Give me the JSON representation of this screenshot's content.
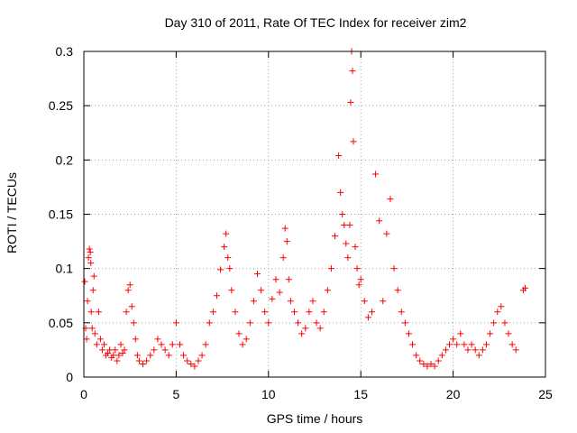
{
  "chart_data": {
    "type": "scatter",
    "title": "Day 310 of 2011, Rate Of TEC Index for receiver zim2",
    "xlabel": "GPS time / hours",
    "ylabel": "ROTI / TECUs",
    "xlim": [
      0,
      25
    ],
    "ylim": [
      0,
      0.3
    ],
    "xticks": [
      0,
      5,
      10,
      15,
      20,
      25
    ],
    "yticks": [
      0,
      0.05,
      0.1,
      0.15,
      0.2,
      0.25,
      0.3
    ],
    "xtick_labels": [
      "0",
      "5",
      "10",
      "15",
      "20",
      "25"
    ],
    "ytick_labels": [
      "0",
      "0.05",
      "0.1",
      "0.15",
      "0.2",
      "0.25",
      "0.3"
    ],
    "grid": true,
    "marker": "+",
    "series_color": "#ff0000",
    "series": [
      {
        "x": [
          0.05,
          0.1,
          0.15,
          0.2,
          0.25,
          0.3,
          0.35,
          0.38,
          0.4,
          0.45,
          0.5,
          0.55,
          0.6,
          0.7,
          0.8,
          0.9,
          1.0,
          1.1,
          1.2,
          1.3,
          1.4,
          1.5,
          1.6,
          1.7,
          1.8,
          1.9,
          2.0,
          2.1,
          2.2,
          2.3,
          2.4,
          2.5,
          2.6,
          2.7,
          2.8,
          2.9,
          3.0,
          3.2,
          3.4,
          3.6,
          3.8,
          4.0,
          4.2,
          4.4,
          4.6,
          4.8,
          5.0,
          5.2,
          5.4,
          5.6,
          5.8,
          6.0,
          6.2,
          6.4,
          6.6,
          6.8,
          7.0,
          7.2,
          7.4,
          7.6,
          7.7,
          7.8,
          7.9,
          8.0,
          8.2,
          8.4,
          8.6,
          8.8,
          9.0,
          9.2,
          9.4,
          9.6,
          9.8,
          10.0,
          10.2,
          10.4,
          10.6,
          10.8,
          10.9,
          11.0,
          11.1,
          11.2,
          11.4,
          11.6,
          11.8,
          12.0,
          12.2,
          12.4,
          12.6,
          12.8,
          13.0,
          13.2,
          13.4,
          13.6,
          13.8,
          13.9,
          14.0,
          14.1,
          14.2,
          14.3,
          14.4,
          14.45,
          14.5,
          14.55,
          14.6,
          14.7,
          14.8,
          14.9,
          15.0,
          15.2,
          15.4,
          15.6,
          15.8,
          16.0,
          16.2,
          16.4,
          16.6,
          16.8,
          17.0,
          17.2,
          17.4,
          17.6,
          17.8,
          18.0,
          18.2,
          18.4,
          18.6,
          18.8,
          19.0,
          19.2,
          19.4,
          19.6,
          19.8,
          20.0,
          20.2,
          20.4,
          20.6,
          20.8,
          21.0,
          21.2,
          21.4,
          21.6,
          21.8,
          22.0,
          22.2,
          22.4,
          22.6,
          22.8,
          23.0,
          23.2,
          23.4,
          23.8,
          23.9
        ],
        "y": [
          0.088,
          0.045,
          0.035,
          0.07,
          0.11,
          0.118,
          0.115,
          0.105,
          0.06,
          0.045,
          0.08,
          0.093,
          0.04,
          0.03,
          0.06,
          0.035,
          0.025,
          0.03,
          0.02,
          0.022,
          0.025,
          0.018,
          0.02,
          0.025,
          0.015,
          0.02,
          0.03,
          0.022,
          0.025,
          0.06,
          0.08,
          0.085,
          0.065,
          0.05,
          0.035,
          0.02,
          0.015,
          0.012,
          0.015,
          0.02,
          0.025,
          0.035,
          0.03,
          0.025,
          0.02,
          0.03,
          0.05,
          0.03,
          0.02,
          0.015,
          0.012,
          0.01,
          0.015,
          0.02,
          0.03,
          0.05,
          0.06,
          0.075,
          0.099,
          0.12,
          0.132,
          0.11,
          0.1,
          0.08,
          0.06,
          0.04,
          0.03,
          0.035,
          0.05,
          0.07,
          0.095,
          0.08,
          0.06,
          0.05,
          0.072,
          0.09,
          0.078,
          0.11,
          0.137,
          0.125,
          0.09,
          0.07,
          0.06,
          0.05,
          0.04,
          0.045,
          0.06,
          0.07,
          0.05,
          0.045,
          0.06,
          0.08,
          0.1,
          0.13,
          0.204,
          0.17,
          0.15,
          0.14,
          0.123,
          0.11,
          0.14,
          0.253,
          0.3,
          0.282,
          0.217,
          0.12,
          0.1,
          0.085,
          0.09,
          0.07,
          0.055,
          0.06,
          0.187,
          0.144,
          0.07,
          0.132,
          0.164,
          0.1,
          0.08,
          0.06,
          0.05,
          0.04,
          0.03,
          0.02,
          0.015,
          0.012,
          0.01,
          0.012,
          0.01,
          0.015,
          0.02,
          0.025,
          0.03,
          0.035,
          0.03,
          0.04,
          0.03,
          0.025,
          0.03,
          0.025,
          0.02,
          0.025,
          0.03,
          0.04,
          0.05,
          0.06,
          0.065,
          0.05,
          0.04,
          0.03,
          0.025,
          0.08,
          0.082
        ]
      }
    ]
  }
}
